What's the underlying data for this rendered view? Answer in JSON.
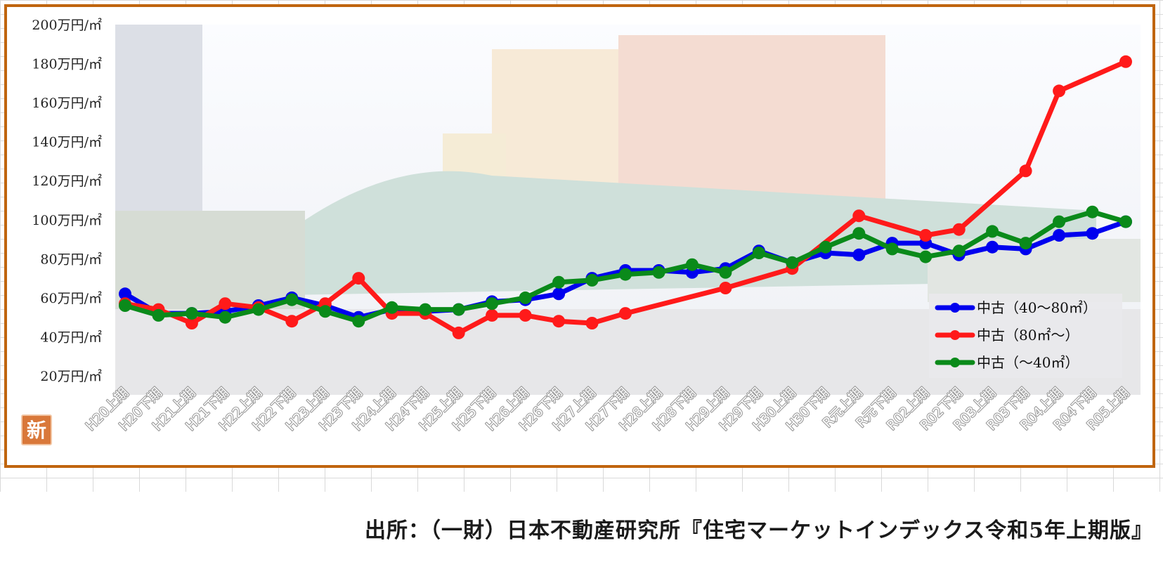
{
  "chart_data": {
    "type": "line",
    "title": "",
    "xlabel": "",
    "ylabel": "",
    "categories": [
      "H20上期",
      "H20下期",
      "H21上期",
      "H21下期",
      "H22上期",
      "H22下期",
      "H23上期",
      "H23下期",
      "H24上期",
      "H24下期",
      "H25上期",
      "H25下期",
      "H26上期",
      "H26下期",
      "H27上期",
      "H27下期",
      "H28上期",
      "H28下期",
      "H29上期",
      "H29下期",
      "H30上期",
      "H30下期",
      "R元上期",
      "R元下期",
      "R02上期",
      "R02下期",
      "R03上期",
      "R03下期",
      "R04上期",
      "R04下期",
      "R05上期"
    ],
    "y_ticks": [
      "20万円/㎡",
      "40万円/㎡",
      "60万円/㎡",
      "80万円/㎡",
      "100万円/㎡",
      "120万円/㎡",
      "140万円/㎡",
      "160万円/㎡",
      "180万円/㎡",
      "200万円/㎡"
    ],
    "ylim": [
      20,
      200
    ],
    "grid": false,
    "legend_position": "bottom-right",
    "series": [
      {
        "name": "中古（40～80㎡）",
        "color": "#0000ee",
        "values": [
          62,
          52,
          52,
          53,
          56,
          60,
          56,
          50,
          54,
          53,
          54,
          58,
          59,
          62,
          70,
          74,
          74,
          73,
          75,
          84,
          78,
          83,
          82,
          88,
          88,
          82,
          86,
          85,
          92,
          93,
          99
        ]
      },
      {
        "name": "中古（80㎡～）",
        "color": "#ff1a1a",
        "values": [
          57,
          54,
          47,
          57,
          55,
          48,
          57,
          70,
          52,
          52,
          42,
          51,
          51,
          48,
          47,
          52,
          null,
          null,
          65,
          null,
          75,
          null,
          102,
          null,
          92,
          95,
          null,
          125,
          166,
          null,
          181
        ]
      },
      {
        "name": "中古（～40㎡）",
        "color": "#0a8a1a",
        "values": [
          56,
          51,
          52,
          50,
          54,
          59,
          53,
          48,
          55,
          54,
          54,
          57,
          60,
          68,
          69,
          72,
          73,
          77,
          73,
          83,
          78,
          86,
          93,
          85,
          81,
          84,
          94,
          88,
          99,
          104,
          99
        ]
      }
    ]
  },
  "source": "出所：（一財）日本不動産研究所『住宅マーケットインデックス令和5年上期版』",
  "logo_char": "新"
}
